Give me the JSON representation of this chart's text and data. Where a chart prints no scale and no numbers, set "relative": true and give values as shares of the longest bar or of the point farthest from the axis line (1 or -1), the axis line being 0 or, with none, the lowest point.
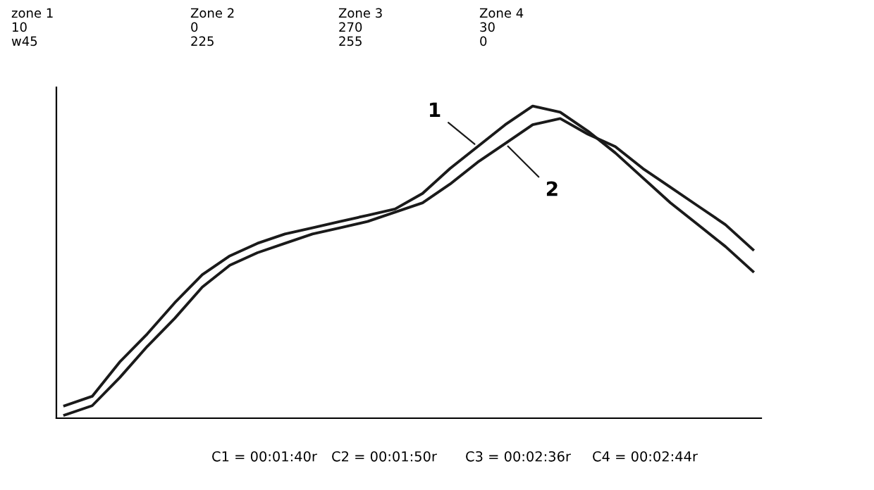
{
  "chart_data": {
    "type": "line",
    "relative": true,
    "categories": [
      null,
      null,
      null,
      null,
      null,
      null,
      null,
      null,
      null,
      null,
      null,
      null,
      null,
      null,
      null,
      null,
      null,
      null,
      null,
      null,
      null,
      null,
      null,
      null,
      null,
      null
    ],
    "series": [
      {
        "name": "1",
        "color": "#1a1a1a",
        "values": [
          0.04,
          0.07,
          0.18,
          0.27,
          0.37,
          0.46,
          0.52,
          0.56,
          0.59,
          0.61,
          0.63,
          0.65,
          0.67,
          0.72,
          0.8,
          0.87,
          0.94,
          1.0,
          0.98,
          0.92,
          0.85,
          0.77,
          0.69,
          0.62,
          0.55,
          0.47
        ]
      },
      {
        "name": "2",
        "color": "#1a1a1a",
        "values": [
          0.01,
          0.04,
          0.13,
          0.23,
          0.32,
          0.42,
          0.49,
          0.53,
          0.56,
          0.59,
          0.61,
          0.63,
          0.66,
          0.69,
          0.75,
          0.82,
          0.88,
          0.94,
          0.96,
          0.91,
          0.87,
          0.8,
          0.74,
          0.68,
          0.62,
          0.54
        ]
      }
    ],
    "annotations": [
      "zone 1",
      "Zone 2",
      "Zone 3",
      "Zone 4",
      "10",
      "0",
      "270",
      "30",
      "w45",
      "225",
      "255",
      "0",
      "C1 = 00:01:40r",
      "C2 = 00:01:50r",
      "C3 = 00:02:36r",
      "C4 = 00:02:44r"
    ],
    "grid": false,
    "legend": false,
    "marker": "none",
    "line_style": "solid"
  }
}
